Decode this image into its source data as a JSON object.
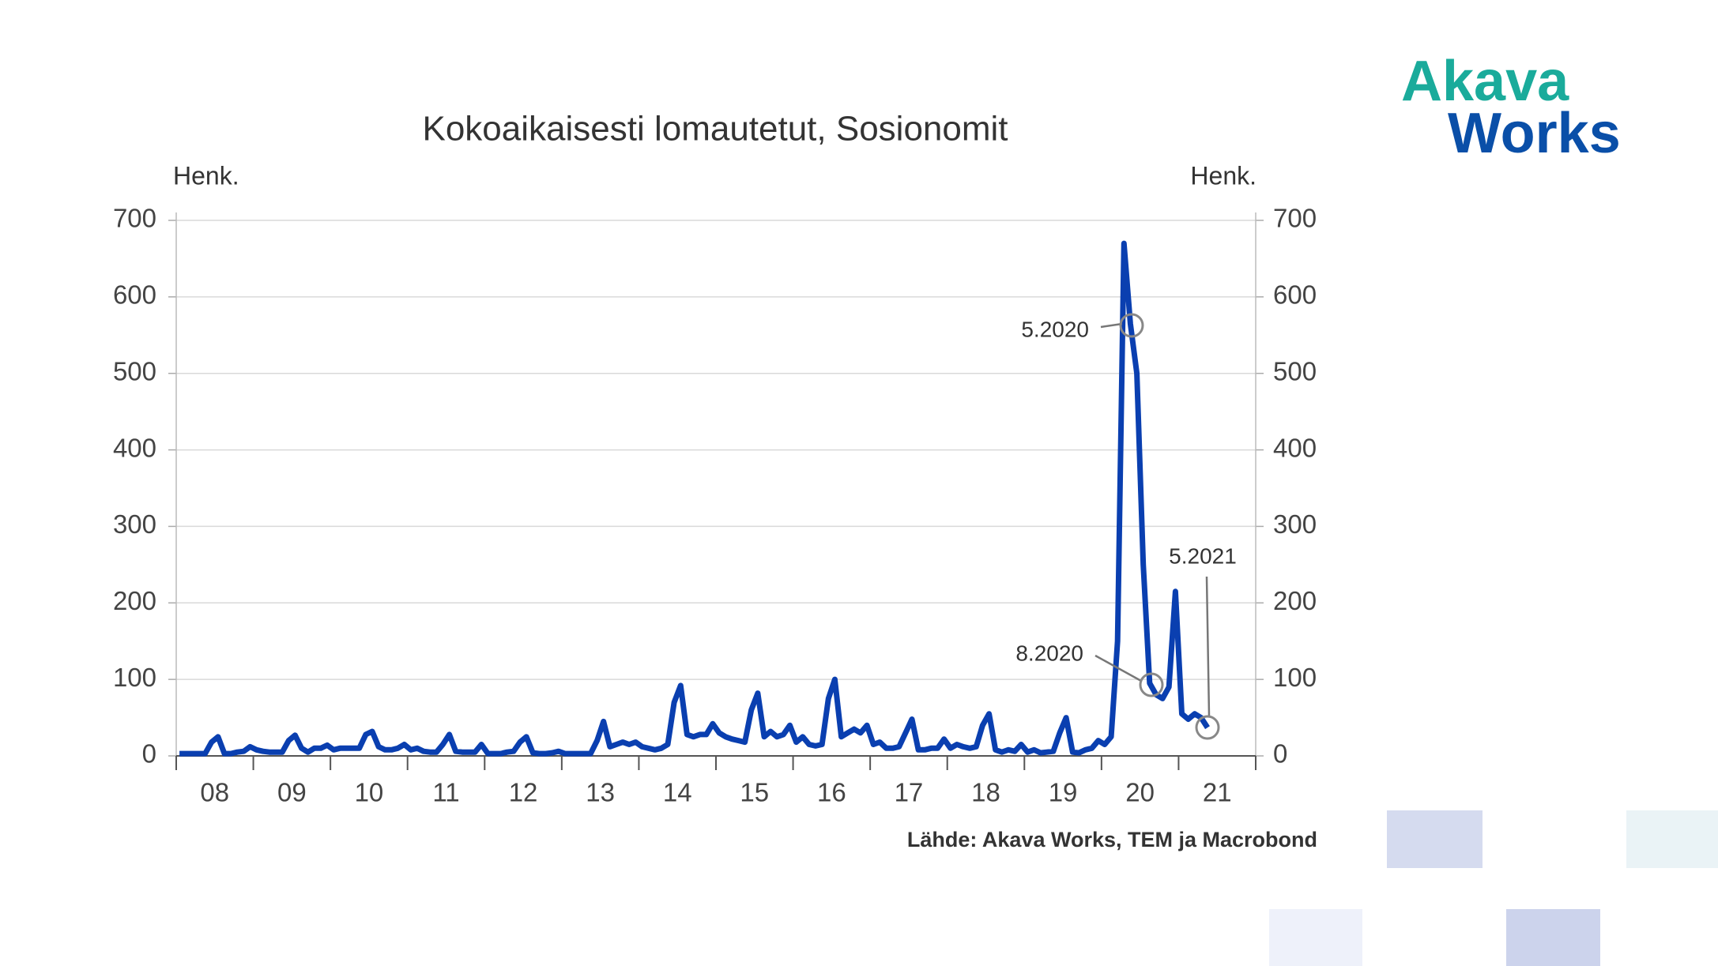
{
  "chart_data": {
    "type": "line",
    "title": "Kokoaikaisesti lomautetut, Sosionomit",
    "y_label": "Henk.",
    "y2_label": "Henk.",
    "source": "Lähde: Akava Works, TEM ja Macrobond",
    "logo": [
      "Akava",
      "Works"
    ],
    "categories": [
      "08",
      null,
      null,
      null,
      null,
      null,
      null,
      null,
      null,
      null,
      null,
      null,
      "09",
      null,
      null,
      null,
      null,
      null,
      null,
      null,
      null,
      null,
      null,
      null,
      "10",
      null,
      null,
      null,
      null,
      null,
      null,
      null,
      null,
      null,
      null,
      null,
      "11",
      null,
      null,
      null,
      null,
      null,
      null,
      null,
      null,
      null,
      null,
      null,
      "12",
      null,
      null,
      null,
      null,
      null,
      null,
      null,
      null,
      null,
      null,
      null,
      "13",
      null,
      null,
      null,
      null,
      null,
      null,
      null,
      null,
      null,
      null,
      null,
      "14",
      null,
      null,
      null,
      null,
      null,
      null,
      null,
      null,
      null,
      null,
      null,
      "15",
      null,
      null,
      null,
      null,
      null,
      null,
      null,
      null,
      null,
      null,
      null,
      "16",
      null,
      null,
      null,
      null,
      null,
      null,
      null,
      null,
      null,
      null,
      null,
      "17",
      null,
      null,
      null,
      null,
      null,
      null,
      null,
      null,
      null,
      null,
      null,
      "18",
      null,
      null,
      null,
      null,
      null,
      null,
      null,
      null,
      null,
      null,
      null,
      "19",
      null,
      null,
      null,
      null,
      null,
      null,
      null,
      null,
      null,
      null,
      null,
      "20",
      null,
      null,
      null,
      null,
      null,
      null,
      null,
      null,
      null,
      null,
      null,
      "21",
      null,
      null,
      null,
      null
    ],
    "series": [
      {
        "color": "#0a3fb0",
        "values": [
          3,
          3,
          3,
          3,
          3,
          18,
          25,
          3,
          3,
          5,
          6,
          12,
          8,
          6,
          5,
          5,
          5,
          20,
          27,
          10,
          5,
          10,
          10,
          14,
          8,
          10,
          10,
          10,
          10,
          28,
          32,
          12,
          8,
          8,
          10,
          15,
          8,
          10,
          6,
          5,
          5,
          15,
          28,
          6,
          5,
          5,
          5,
          15,
          3,
          3,
          3,
          5,
          6,
          18,
          25,
          4,
          3,
          3,
          4,
          6,
          3,
          3,
          3,
          3,
          3,
          20,
          45,
          12,
          15,
          18,
          15,
          18,
          12,
          10,
          8,
          10,
          15,
          70,
          92,
          28,
          25,
          28,
          28,
          42,
          30,
          25,
          22,
          20,
          18,
          60,
          82,
          25,
          32,
          25,
          28,
          40,
          18,
          25,
          15,
          13,
          15,
          75,
          100,
          25,
          30,
          35,
          30,
          40,
          15,
          18,
          10,
          10,
          12,
          30,
          48,
          8,
          8,
          10,
          10,
          22,
          10,
          15,
          12,
          10,
          12,
          40,
          55,
          8,
          5,
          8,
          6,
          15,
          5,
          8,
          4,
          5,
          6,
          30,
          50,
          5,
          4,
          8,
          10,
          20,
          15,
          25,
          150,
          670,
          565,
          500,
          250,
          95,
          80,
          75,
          90,
          215,
          55,
          48,
          55,
          50,
          37
        ]
      }
    ],
    "annotations": [
      "5.2020",
      "8.2020",
      "5.2021"
    ],
    "ylim": [
      0,
      700
    ],
    "yticks": [
      0,
      100,
      200,
      300,
      400,
      500,
      600,
      700
    ],
    "y2lim": [
      0,
      700
    ],
    "y2ticks": [
      0,
      100,
      200,
      300,
      400,
      500,
      600,
      700
    ],
    "grid": true
  }
}
